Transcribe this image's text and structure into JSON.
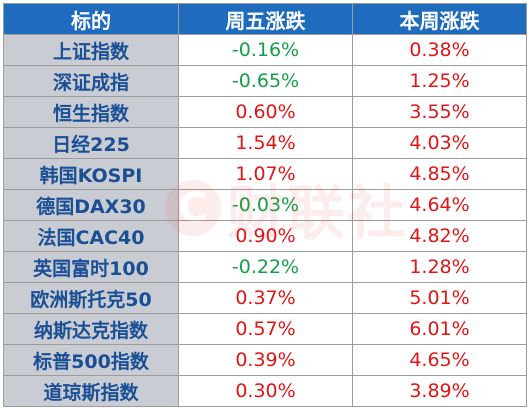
{
  "table": {
    "headers": [
      "标的",
      "周五涨跌",
      "本周涨跌"
    ],
    "rows": [
      {
        "name": "上证指数",
        "friday": "-0.16%",
        "week": "0.38%"
      },
      {
        "name": "深证成指",
        "friday": "-0.65%",
        "week": "1.25%"
      },
      {
        "name": "恒生指数",
        "friday": "0.60%",
        "week": "3.55%"
      },
      {
        "name": "日经225",
        "friday": "1.54%",
        "week": "4.03%"
      },
      {
        "name": "韩国KOSPI",
        "friday": "1.07%",
        "week": "4.85%"
      },
      {
        "name": "德国DAX30",
        "friday": "-0.03%",
        "week": "4.64%"
      },
      {
        "name": "法国CAC40",
        "friday": "0.90%",
        "week": "4.82%"
      },
      {
        "name": "英国富时100",
        "friday": "-0.22%",
        "week": "1.28%"
      },
      {
        "name": "欧洲斯托克50",
        "friday": "0.37%",
        "week": "5.01%"
      },
      {
        "name": "纳斯达克指数",
        "friday": "0.57%",
        "week": "6.01%"
      },
      {
        "name": "标普500指数",
        "friday": "0.39%",
        "week": "4.65%"
      },
      {
        "name": "道琼斯指数",
        "friday": "0.30%",
        "week": "3.89%"
      }
    ]
  },
  "colors": {
    "header_bg": "#1f6bbd",
    "name_bg": "#c9cdd3",
    "name_text": "#1a4f95",
    "positive": "#e11515",
    "negative": "#13a04a"
  },
  "watermark": {
    "logo_letter": "C",
    "text": "财联社"
  }
}
